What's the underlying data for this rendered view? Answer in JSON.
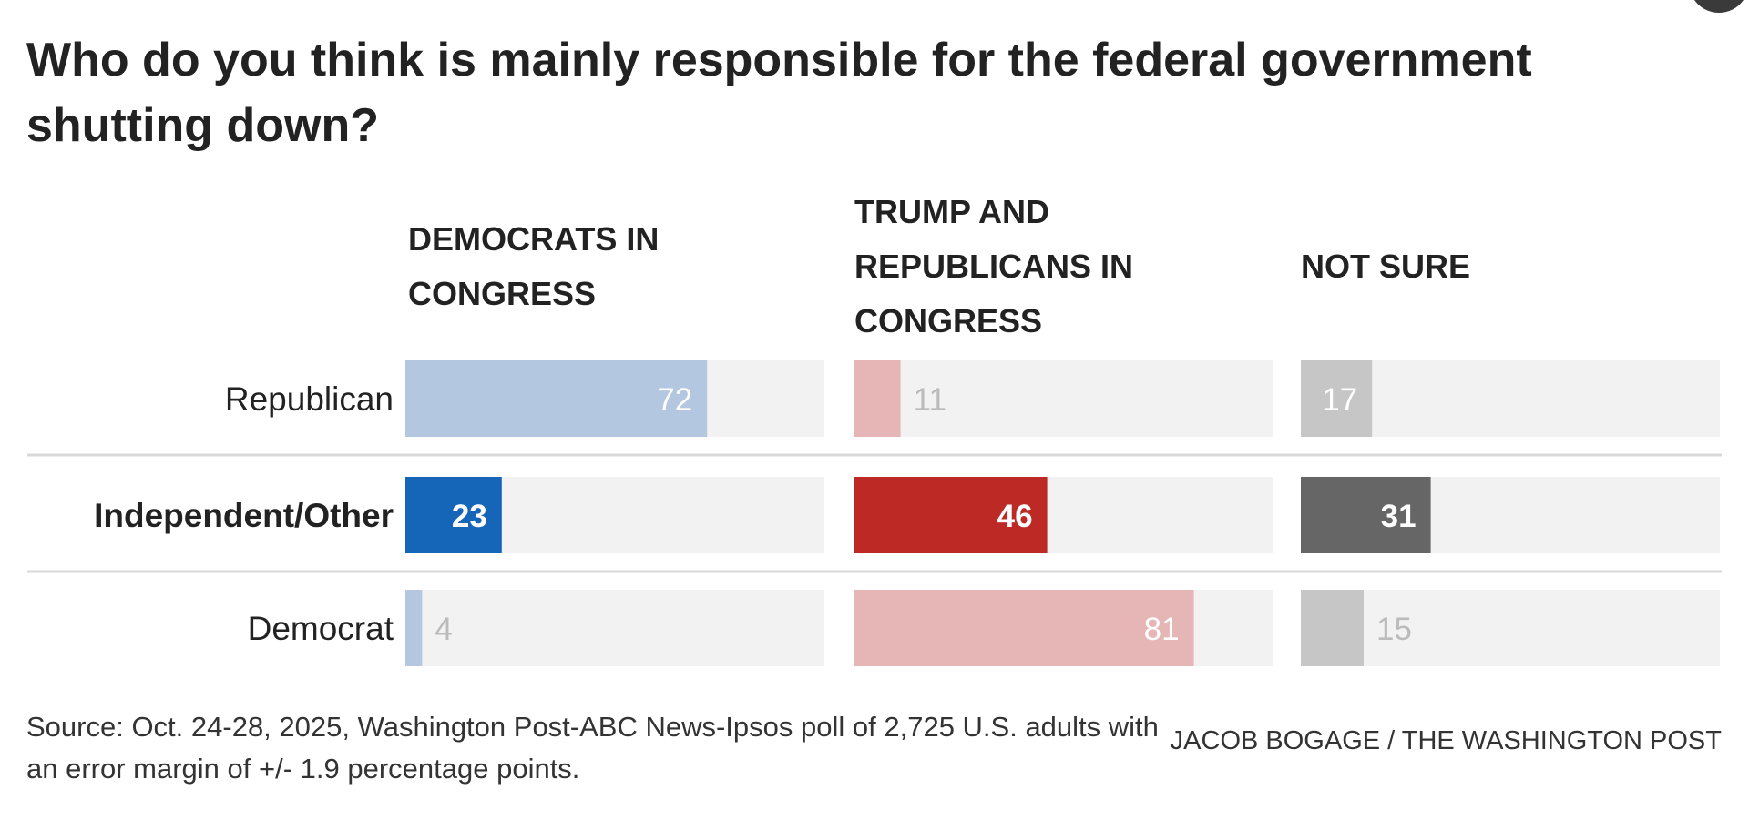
{
  "title": "Who do you think is mainly responsible for the federal government shutting down?",
  "source": "Source: Oct. 24-28, 2025, Washington Post-ABC News-Ipsos poll of 2,725 U.S. adults with an error margin of +/- 1.9 percentage points.",
  "credit": "JACOB BOGAGE / THE WASHINGTON POST",
  "colors": {
    "track": "#f2f2f2",
    "separator": "#d9d9d9",
    "dem_strong": "#1565b8",
    "dem_light": "#b3c8e0",
    "rep_strong": "#bd2a25",
    "rep_light": "#e5b6b5",
    "unsure_strong": "#666666",
    "unsure_light": "#c6c6c6",
    "value_on_light": "#ffffff",
    "value_off_light": "#bbbbbb"
  },
  "chart_data": {
    "type": "bar",
    "xlim": [
      0,
      100
    ],
    "columns": [
      "DEMOCRATS IN CONGRESS",
      "TRUMP AND REPUBLICANS IN CONGRESS",
      "NOT SURE"
    ],
    "categories": [
      "Republican",
      "Independent/Other",
      "Democrat"
    ],
    "highlight_category": "Independent/Other",
    "series": [
      {
        "name": "DEMOCRATS IN CONGRESS",
        "values": [
          72,
          23,
          4
        ]
      },
      {
        "name": "TRUMP AND REPUBLICANS IN CONGRESS",
        "values": [
          11,
          46,
          81
        ]
      },
      {
        "name": "NOT SURE",
        "values": [
          17,
          31,
          15
        ]
      }
    ]
  }
}
